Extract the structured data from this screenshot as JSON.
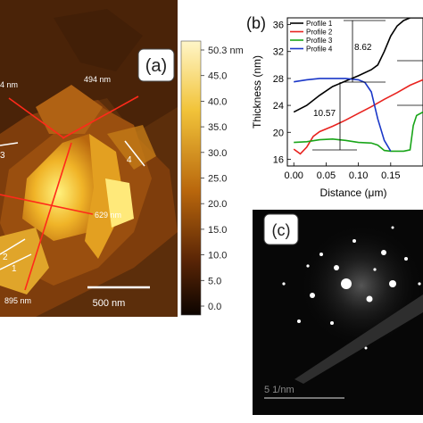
{
  "panel_a": {
    "label": "(a)",
    "colorbar_ticks": [
      "50.3 nm",
      "45.0",
      "40.0",
      "35.0",
      "30.0",
      "25.0",
      "20.0",
      "15.0",
      "10.0",
      "5.0",
      "0.0"
    ],
    "scalebar_label": "500 nm",
    "annotations": {
      "top_left": "4 nm",
      "top": "494 nm",
      "right": "629 nm",
      "bottom": "895 nm"
    },
    "line_numbers": {
      "one": "1",
      "two": "2",
      "three": "3",
      "four": "4"
    },
    "colors": {
      "profile_lines": "#ff2a1a",
      "markers": "#ffffff"
    }
  },
  "panel_b": {
    "label": "(b)",
    "annotations": {
      "step_a": "8.62",
      "step_b": "10.57"
    }
  },
  "panel_c": {
    "label": "(c)",
    "scalebar_text": "5 1/nm"
  },
  "chart_data": {
    "type": "line",
    "xlabel": "Distance (μm)",
    "ylabel": "Thickness (nm)",
    "xlim": [
      -0.01,
      0.2
    ],
    "ylim": [
      15,
      37
    ],
    "x_ticks": [
      "0.00",
      "0.05",
      "0.10",
      "0.15"
    ],
    "y_ticks": [
      "16",
      "20",
      "24",
      "28",
      "32",
      "36"
    ],
    "legend_position": "top-left",
    "series": [
      {
        "name": "Profile 1",
        "color": "#000000",
        "x": [
          0.0,
          0.02,
          0.04,
          0.06,
          0.08,
          0.1,
          0.12,
          0.13,
          0.14,
          0.15,
          0.16,
          0.17,
          0.18,
          0.19,
          0.2
        ],
        "y": [
          23.0,
          24.0,
          25.5,
          26.8,
          27.6,
          28.4,
          29.3,
          30.0,
          32.0,
          34.3,
          35.8,
          36.6,
          37.0,
          37.0,
          37.0
        ]
      },
      {
        "name": "Profile 2",
        "color": "#e8231f",
        "x": [
          0.0,
          0.01,
          0.02,
          0.03,
          0.04,
          0.06,
          0.08,
          0.1,
          0.12,
          0.14,
          0.16,
          0.18,
          0.2
        ],
        "y": [
          17.5,
          16.8,
          17.8,
          19.4,
          20.1,
          20.9,
          21.8,
          22.8,
          23.8,
          24.9,
          25.9,
          27.0,
          27.8
        ]
      },
      {
        "name": "Profile 3",
        "color": "#19a519",
        "x": [
          0.0,
          0.02,
          0.04,
          0.06,
          0.08,
          0.1,
          0.12,
          0.13,
          0.14,
          0.15,
          0.16,
          0.17,
          0.18,
          0.185,
          0.19,
          0.2
        ],
        "y": [
          18.5,
          18.6,
          18.9,
          19.0,
          18.8,
          18.5,
          18.4,
          18.1,
          17.3,
          17.2,
          17.2,
          17.2,
          17.4,
          21.0,
          22.5,
          23.0
        ]
      },
      {
        "name": "Profile 4",
        "color": "#1a37c8",
        "x": [
          0.0,
          0.02,
          0.04,
          0.06,
          0.08,
          0.1,
          0.11,
          0.12,
          0.13,
          0.14,
          0.15
        ],
        "y": [
          27.5,
          27.8,
          28.0,
          28.0,
          28.0,
          27.8,
          27.4,
          26.0,
          22.0,
          18.8,
          17.2
        ]
      }
    ]
  }
}
